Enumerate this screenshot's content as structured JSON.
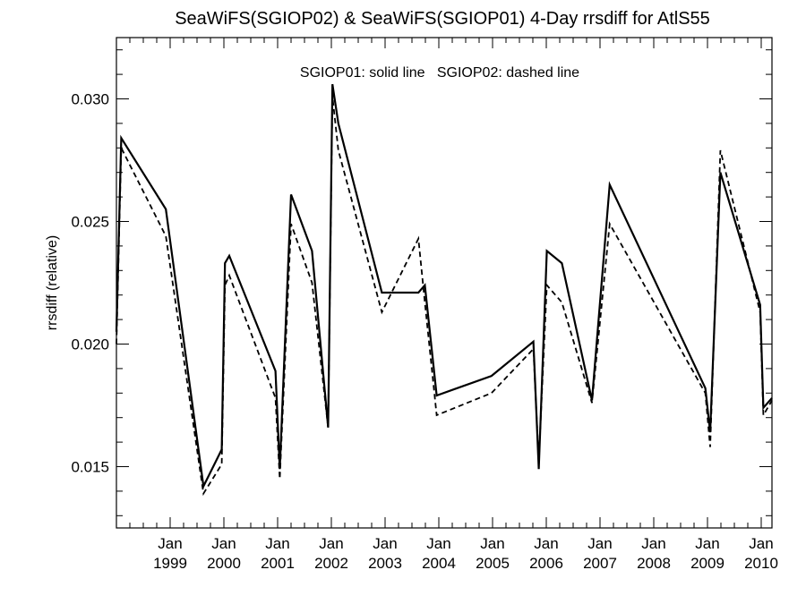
{
  "chart_data": {
    "type": "line",
    "title": "SeaWiFS(SGIOP02) & SeaWiFS(SGIOP01) 4-Day rrsdiff for AtlS55",
    "xlabel": "",
    "ylabel": "rrsdiff (relative)",
    "annotation": "SGIOP01: solid line   SGIOP02: dashed line",
    "xlim": [
      1998.0,
      2010.2
    ],
    "ylim": [
      0.0125,
      0.0325
    ],
    "x_ticks": [
      {
        "value": 1999.0,
        "month": "Jan",
        "year": "1999"
      },
      {
        "value": 2000.0,
        "month": "Jan",
        "year": "2000"
      },
      {
        "value": 2001.0,
        "month": "Jan",
        "year": "2001"
      },
      {
        "value": 2002.0,
        "month": "Jan",
        "year": "2002"
      },
      {
        "value": 2003.0,
        "month": "Jan",
        "year": "2003"
      },
      {
        "value": 2004.0,
        "month": "Jan",
        "year": "2004"
      },
      {
        "value": 2005.0,
        "month": "Jan",
        "year": "2005"
      },
      {
        "value": 2006.0,
        "month": "Jan",
        "year": "2006"
      },
      {
        "value": 2007.0,
        "month": "Jan",
        "year": "2007"
      },
      {
        "value": 2008.0,
        "month": "Jan",
        "year": "2008"
      },
      {
        "value": 2009.0,
        "month": "Jan",
        "year": "2009"
      },
      {
        "value": 2010.0,
        "month": "Jan",
        "year": "2010"
      }
    ],
    "y_ticks": [
      {
        "value": 0.015,
        "label": "0.015"
      },
      {
        "value": 0.02,
        "label": "0.020"
      },
      {
        "value": 0.025,
        "label": "0.025"
      },
      {
        "value": 0.03,
        "label": "0.030"
      }
    ],
    "grid": false,
    "series": [
      {
        "name": "SGIOP01",
        "style": "solid",
        "color": "#000000",
        "x": [
          1998.0,
          1998.09,
          1998.92,
          1999.62,
          1999.96,
          2000.02,
          2000.1,
          2000.96,
          2001.04,
          2001.25,
          2001.64,
          2001.94,
          2002.02,
          2002.13,
          2002.94,
          2003.62,
          2003.74,
          2003.96,
          2004.98,
          2005.76,
          2005.86,
          2006.01,
          2006.29,
          2006.85,
          2007.18,
          2008.96,
          2009.05,
          2009.24,
          2009.98,
          2010.04,
          2010.2
        ],
        "y": [
          0.0205,
          0.0284,
          0.0255,
          0.0142,
          0.0157,
          0.0233,
          0.0236,
          0.0189,
          0.0149,
          0.0261,
          0.0238,
          0.0166,
          0.0306,
          0.029,
          0.0221,
          0.0221,
          0.0224,
          0.0179,
          0.0187,
          0.0201,
          0.0149,
          0.0238,
          0.0233,
          0.0177,
          0.0265,
          0.0182,
          0.0164,
          0.027,
          0.0216,
          0.0174,
          0.0178
        ]
      },
      {
        "name": "SGIOP02",
        "style": "dashed",
        "color": "#000000",
        "x": [
          1998.0,
          1998.09,
          1998.92,
          1999.62,
          1999.96,
          2000.02,
          2000.1,
          2000.96,
          2001.04,
          2001.25,
          2001.64,
          2001.94,
          2002.02,
          2002.13,
          2002.94,
          2003.62,
          2003.74,
          2003.96,
          2004.98,
          2005.76,
          2005.86,
          2006.01,
          2006.29,
          2006.85,
          2007.18,
          2008.96,
          2009.05,
          2009.24,
          2009.98,
          2010.04,
          2010.2
        ],
        "y": [
          0.02,
          0.028,
          0.0244,
          0.0139,
          0.0151,
          0.0224,
          0.0228,
          0.0178,
          0.0145,
          0.0249,
          0.0225,
          0.0166,
          0.0301,
          0.0279,
          0.0213,
          0.0243,
          0.0217,
          0.0171,
          0.018,
          0.0198,
          0.0152,
          0.0224,
          0.0217,
          0.0176,
          0.0249,
          0.018,
          0.0158,
          0.0279,
          0.0213,
          0.0171,
          0.0177
        ]
      }
    ]
  }
}
